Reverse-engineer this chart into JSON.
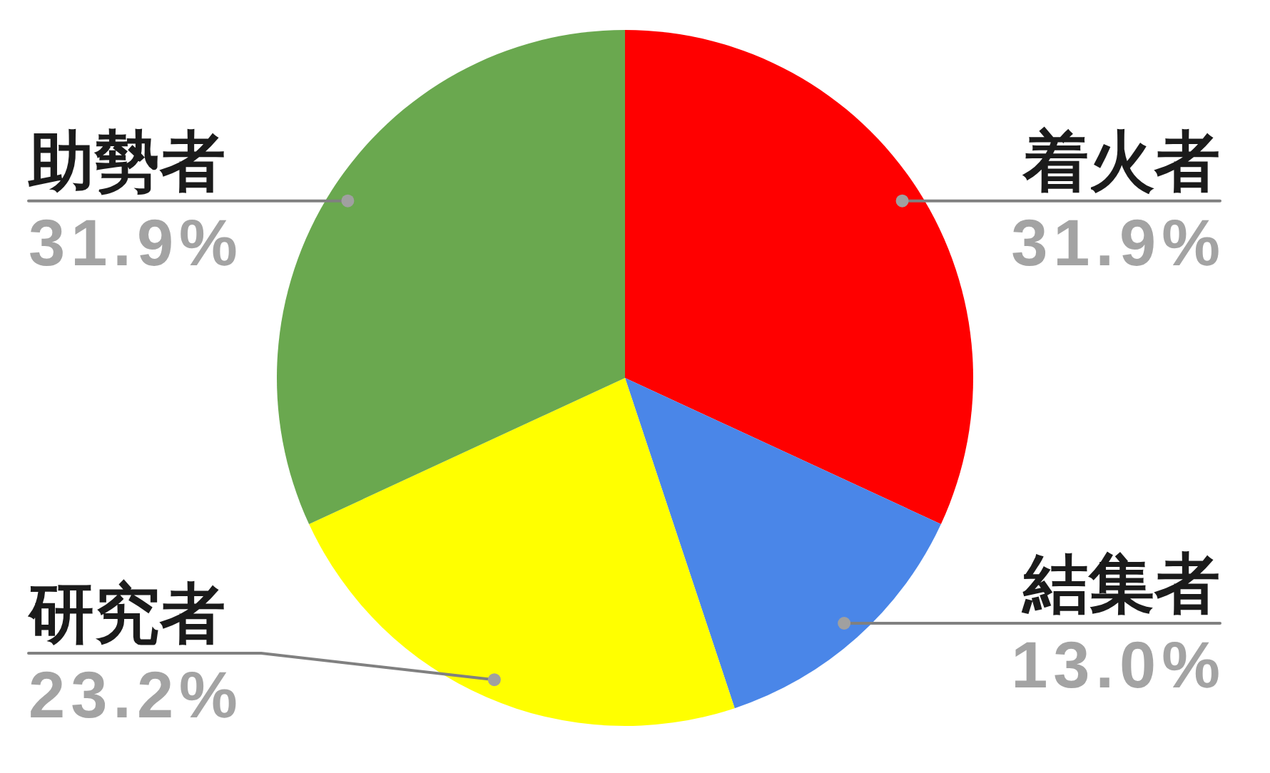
{
  "chart_data": {
    "type": "pie",
    "categories": [
      "着火者",
      "結集者",
      "研究者",
      "助勢者"
    ],
    "values": [
      31.9,
      13.0,
      23.2,
      31.9
    ],
    "colors": [
      "#ff0000",
      "#4a86e8",
      "#ffff00",
      "#6aa84f"
    ],
    "value_labels": [
      "31.9%",
      "13.0%",
      "23.2%",
      "31.9%"
    ]
  }
}
